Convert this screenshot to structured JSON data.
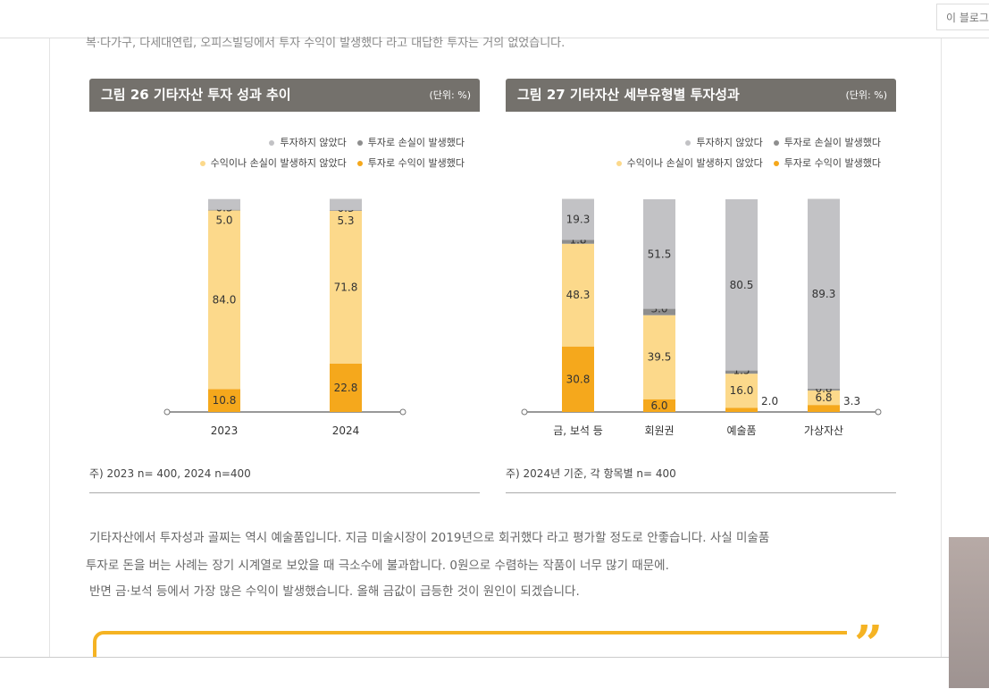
{
  "topbar": {
    "blog_button": "이 블로그"
  },
  "cut_text": "복·다가구, 다세대연립, 오피스빌딩에서 투자 수익이 발생했다 라고 대답한 투자는 거의 없었습니다.",
  "colors": {
    "not_invested": "#c2c2c5",
    "loss": "#8e8e8e",
    "neutral": "#fcd98b",
    "profit": "#f5a81c",
    "header": "#74716c"
  },
  "legend": [
    "투자하지 않았다",
    "투자로 손실이 발생했다",
    "수익이나 손실이 발생하지 않았다",
    "투자로 수익이 발생했다"
  ],
  "chart_data": [
    {
      "type": "bar",
      "stacked": true,
      "title": "그림 26  기타자산 투자 성과 추이",
      "unit": "(단위: %)",
      "categories": [
        "2023",
        "2024"
      ],
      "series": [
        {
          "name": "투자로 수익이 발생했다",
          "values": [
            10.8,
            22.8
          ]
        },
        {
          "name": "수익이나 손실이 발생하지 않았다",
          "values": [
            84.0,
            71.8
          ]
        },
        {
          "name": "투자로 손실이 발생했다",
          "values": [
            0.3,
            0.3
          ]
        },
        {
          "name": "투자하지 않았다",
          "values": [
            5.0,
            5.3
          ]
        }
      ],
      "note": "주) 2023 n= 400, 2024 n=400"
    },
    {
      "type": "bar",
      "stacked": true,
      "title": "그림 27  기타자산 세부유형별 투자성과",
      "unit": "(단위: %)",
      "categories": [
        "금, 보석 등",
        "회원권",
        "예술품",
        "가상자산"
      ],
      "series": [
        {
          "name": "투자로 수익이 발생했다",
          "values": [
            30.8,
            6.0,
            2.0,
            3.3
          ]
        },
        {
          "name": "수익이나 손실이 발생하지 않았다",
          "values": [
            48.3,
            39.5,
            16.0,
            6.8
          ]
        },
        {
          "name": "투자로 손실이 발생했다",
          "values": [
            1.8,
            3.0,
            1.5,
            0.8
          ]
        },
        {
          "name": "투자하지 않았다",
          "values": [
            19.3,
            51.5,
            80.5,
            89.3
          ]
        }
      ],
      "note": "주) 2024년 기준, 각 항목별 n= 400"
    }
  ],
  "paragraph": [
    "기타자산에서 투자성과 골찌는 역시 예술품입니다. 지금 미술시장이 2019년으로 회귀했다 라고 평가할 정도로 안좋습니다. 사실 미술품",
    "투자로 돈을 버는 사례는 장기 시계열로 보았을 때 극소수에 불과합니다. 0원으로 수렴하는 작품이 너무 많기 때문에.",
    "반면 금·보석 등에서 가장 많은 수익이 발생했습니다. 올해 금값이 급등한 것이 원인이 되겠습니다."
  ],
  "quote_mark": "”"
}
